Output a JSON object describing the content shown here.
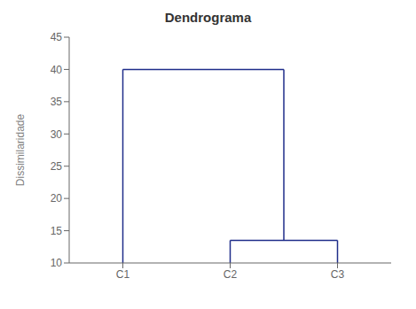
{
  "chart_data": {
    "type": "dendrogram",
    "title": "Dendrograma",
    "y_label": "Dissimilaridade",
    "categories": [
      "C1",
      "C2",
      "C3"
    ],
    "base": 10,
    "merges": [
      {
        "items": [
          "C2",
          "C3"
        ],
        "height": 13.5
      },
      {
        "items": [
          "C1",
          "C2",
          "C3"
        ],
        "height": 40.0
      }
    ],
    "color": "#1F2D8A",
    "ylim": [
      10,
      45
    ],
    "yticks": [
      10,
      15,
      20,
      25,
      30,
      35,
      40,
      45
    ]
  }
}
